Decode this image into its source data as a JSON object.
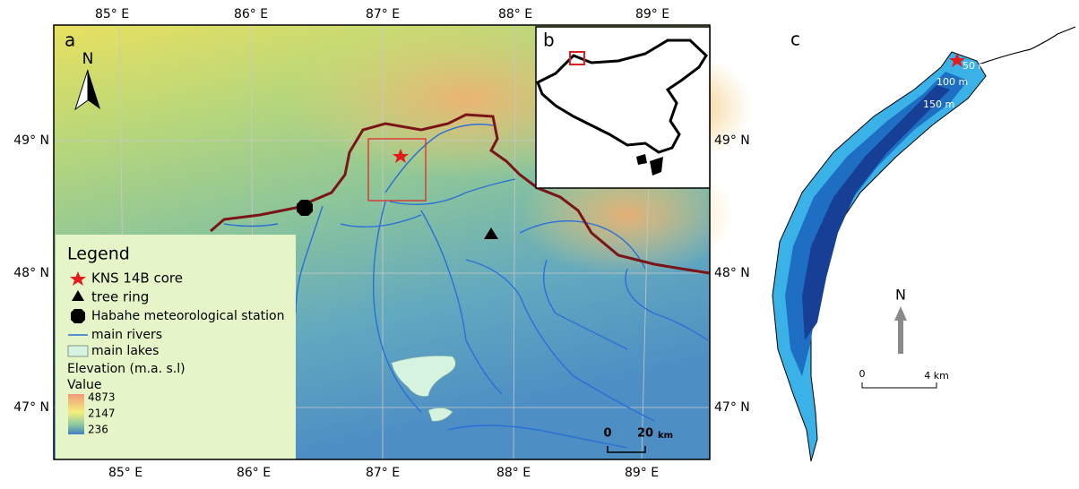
{
  "panel_a": {
    "label": "a",
    "lon_ticks": [
      "85° E",
      "86° E",
      "87° E",
      "88° E",
      "89° E"
    ],
    "lat_ticks": [
      "49° N",
      "48° N",
      "47° N"
    ],
    "north": "N",
    "legend": {
      "title": "Legend",
      "items": [
        "KNS 14B core",
        "tree ring",
        "Habahe meteorological station",
        "main rivers",
        "main lakes"
      ],
      "elevation_title": "Elevation (m.a. s.l)",
      "value_title": "Value",
      "values": [
        4873,
        2147,
        236
      ]
    },
    "scale": {
      "labels": [
        "0",
        "20"
      ],
      "unit": "km"
    }
  },
  "panel_b": {
    "label": "b"
  },
  "panel_c": {
    "label": "c",
    "depths": [
      "50 m",
      "100 m",
      "150 m"
    ],
    "north": "N",
    "scale": {
      "labels": [
        "0",
        "4 km"
      ]
    }
  }
}
